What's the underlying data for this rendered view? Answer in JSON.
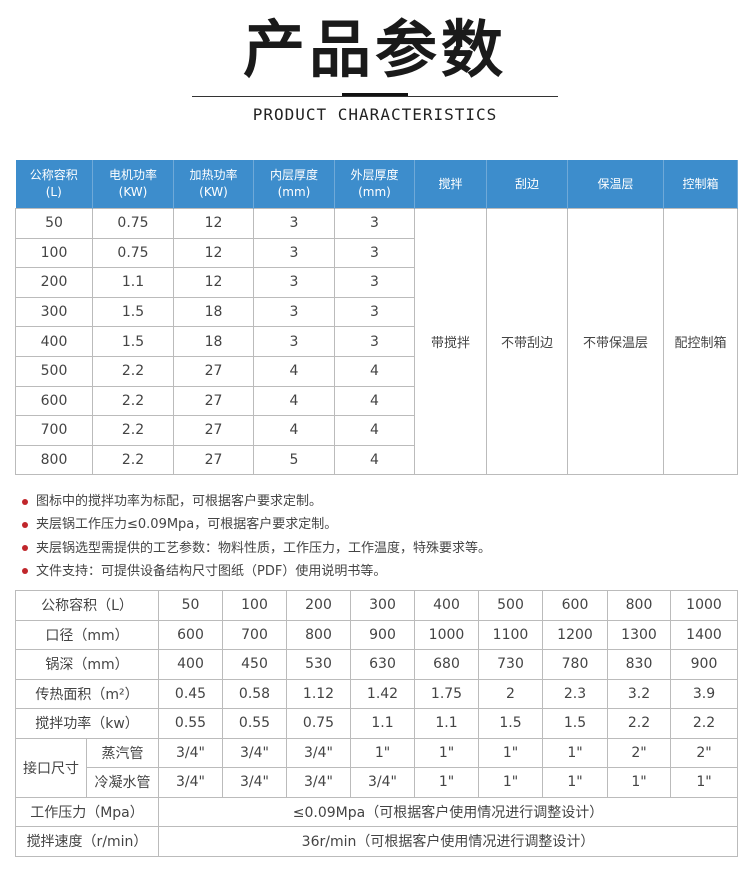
{
  "header": {
    "title": "产品参数",
    "subtitle": "PRODUCT CHARACTERISTICS"
  },
  "colors": {
    "header_blue": "#3d8dcc",
    "bullet_red": "#c0262b"
  },
  "table1": {
    "headers": [
      [
        "公称容积",
        "(L)"
      ],
      [
        "电机功率",
        "(KW)"
      ],
      [
        "加热功率",
        "(KW)"
      ],
      [
        "内层厚度",
        "(mm)"
      ],
      [
        "外层厚度",
        "(mm)"
      ],
      [
        "搅拌",
        ""
      ],
      [
        "刮边",
        ""
      ],
      [
        "保温层",
        ""
      ],
      [
        "控制箱",
        ""
      ]
    ],
    "rows": [
      [
        "50",
        "0.75",
        "12",
        "3",
        "3"
      ],
      [
        "100",
        "0.75",
        "12",
        "3",
        "3"
      ],
      [
        "200",
        "1.1",
        "12",
        "3",
        "3"
      ],
      [
        "300",
        "1.5",
        "18",
        "3",
        "3"
      ],
      [
        "400",
        "1.5",
        "18",
        "3",
        "3"
      ],
      [
        "500",
        "2.2",
        "27",
        "4",
        "4"
      ],
      [
        "600",
        "2.2",
        "27",
        "4",
        "4"
      ],
      [
        "700",
        "2.2",
        "27",
        "4",
        "4"
      ],
      [
        "800",
        "2.2",
        "27",
        "5",
        "4"
      ]
    ],
    "merged": [
      "带搅拌",
      "不带刮边",
      "不带保温层",
      "配控制箱"
    ]
  },
  "notes": [
    "图标中的搅拌功率为标配，可根据客户要求定制。",
    "夹层锅工作压力≤0.09Mpa，可根据客户要求定制。",
    "夹层锅选型需提供的工艺参数：物料性质，工作压力，工作温度，特殊要求等。",
    "文件支持：可提供设备结构尺寸图纸（PDF）使用说明书等。"
  ],
  "table2": {
    "rows": [
      {
        "label": "公称容积（L）",
        "values": [
          "50",
          "100",
          "200",
          "300",
          "400",
          "500",
          "600",
          "800",
          "1000"
        ]
      },
      {
        "label": "口径（mm）",
        "values": [
          "600",
          "700",
          "800",
          "900",
          "1000",
          "1100",
          "1200",
          "1300",
          "1400"
        ]
      },
      {
        "label": "锅深（mm）",
        "values": [
          "400",
          "450",
          "530",
          "630",
          "680",
          "730",
          "780",
          "830",
          "900"
        ]
      },
      {
        "label": "传热面积（m²）",
        "values": [
          "0.45",
          "0.58",
          "1.12",
          "1.42",
          "1.75",
          "2",
          "2.3",
          "3.2",
          "3.9"
        ]
      },
      {
        "label": "搅拌功率（kw）",
        "values": [
          "0.55",
          "0.55",
          "0.75",
          "1.1",
          "1.1",
          "1.5",
          "1.5",
          "2.2",
          "2.2"
        ]
      }
    ],
    "interface": {
      "label": "接口尺寸",
      "sub": [
        {
          "label": "蒸汽管",
          "values": [
            "3/4\"",
            "3/4\"",
            "3/4\"",
            "1\"",
            "1\"",
            "1\"",
            "1\"",
            "2\"",
            "2\""
          ]
        },
        {
          "label": "冷凝水管",
          "values": [
            "3/4\"",
            "3/4\"",
            "3/4\"",
            "3/4\"",
            "1\"",
            "1\"",
            "1\"",
            "1\"",
            "1\""
          ]
        }
      ]
    },
    "span_rows": [
      {
        "label": "工作压力（Mpa）",
        "value": "≤0.09Mpa（可根据客户使用情况进行调整设计）"
      },
      {
        "label": "搅拌速度（r/min）",
        "value": "36r/min（可根据客户使用情况进行调整设计）"
      }
    ]
  }
}
